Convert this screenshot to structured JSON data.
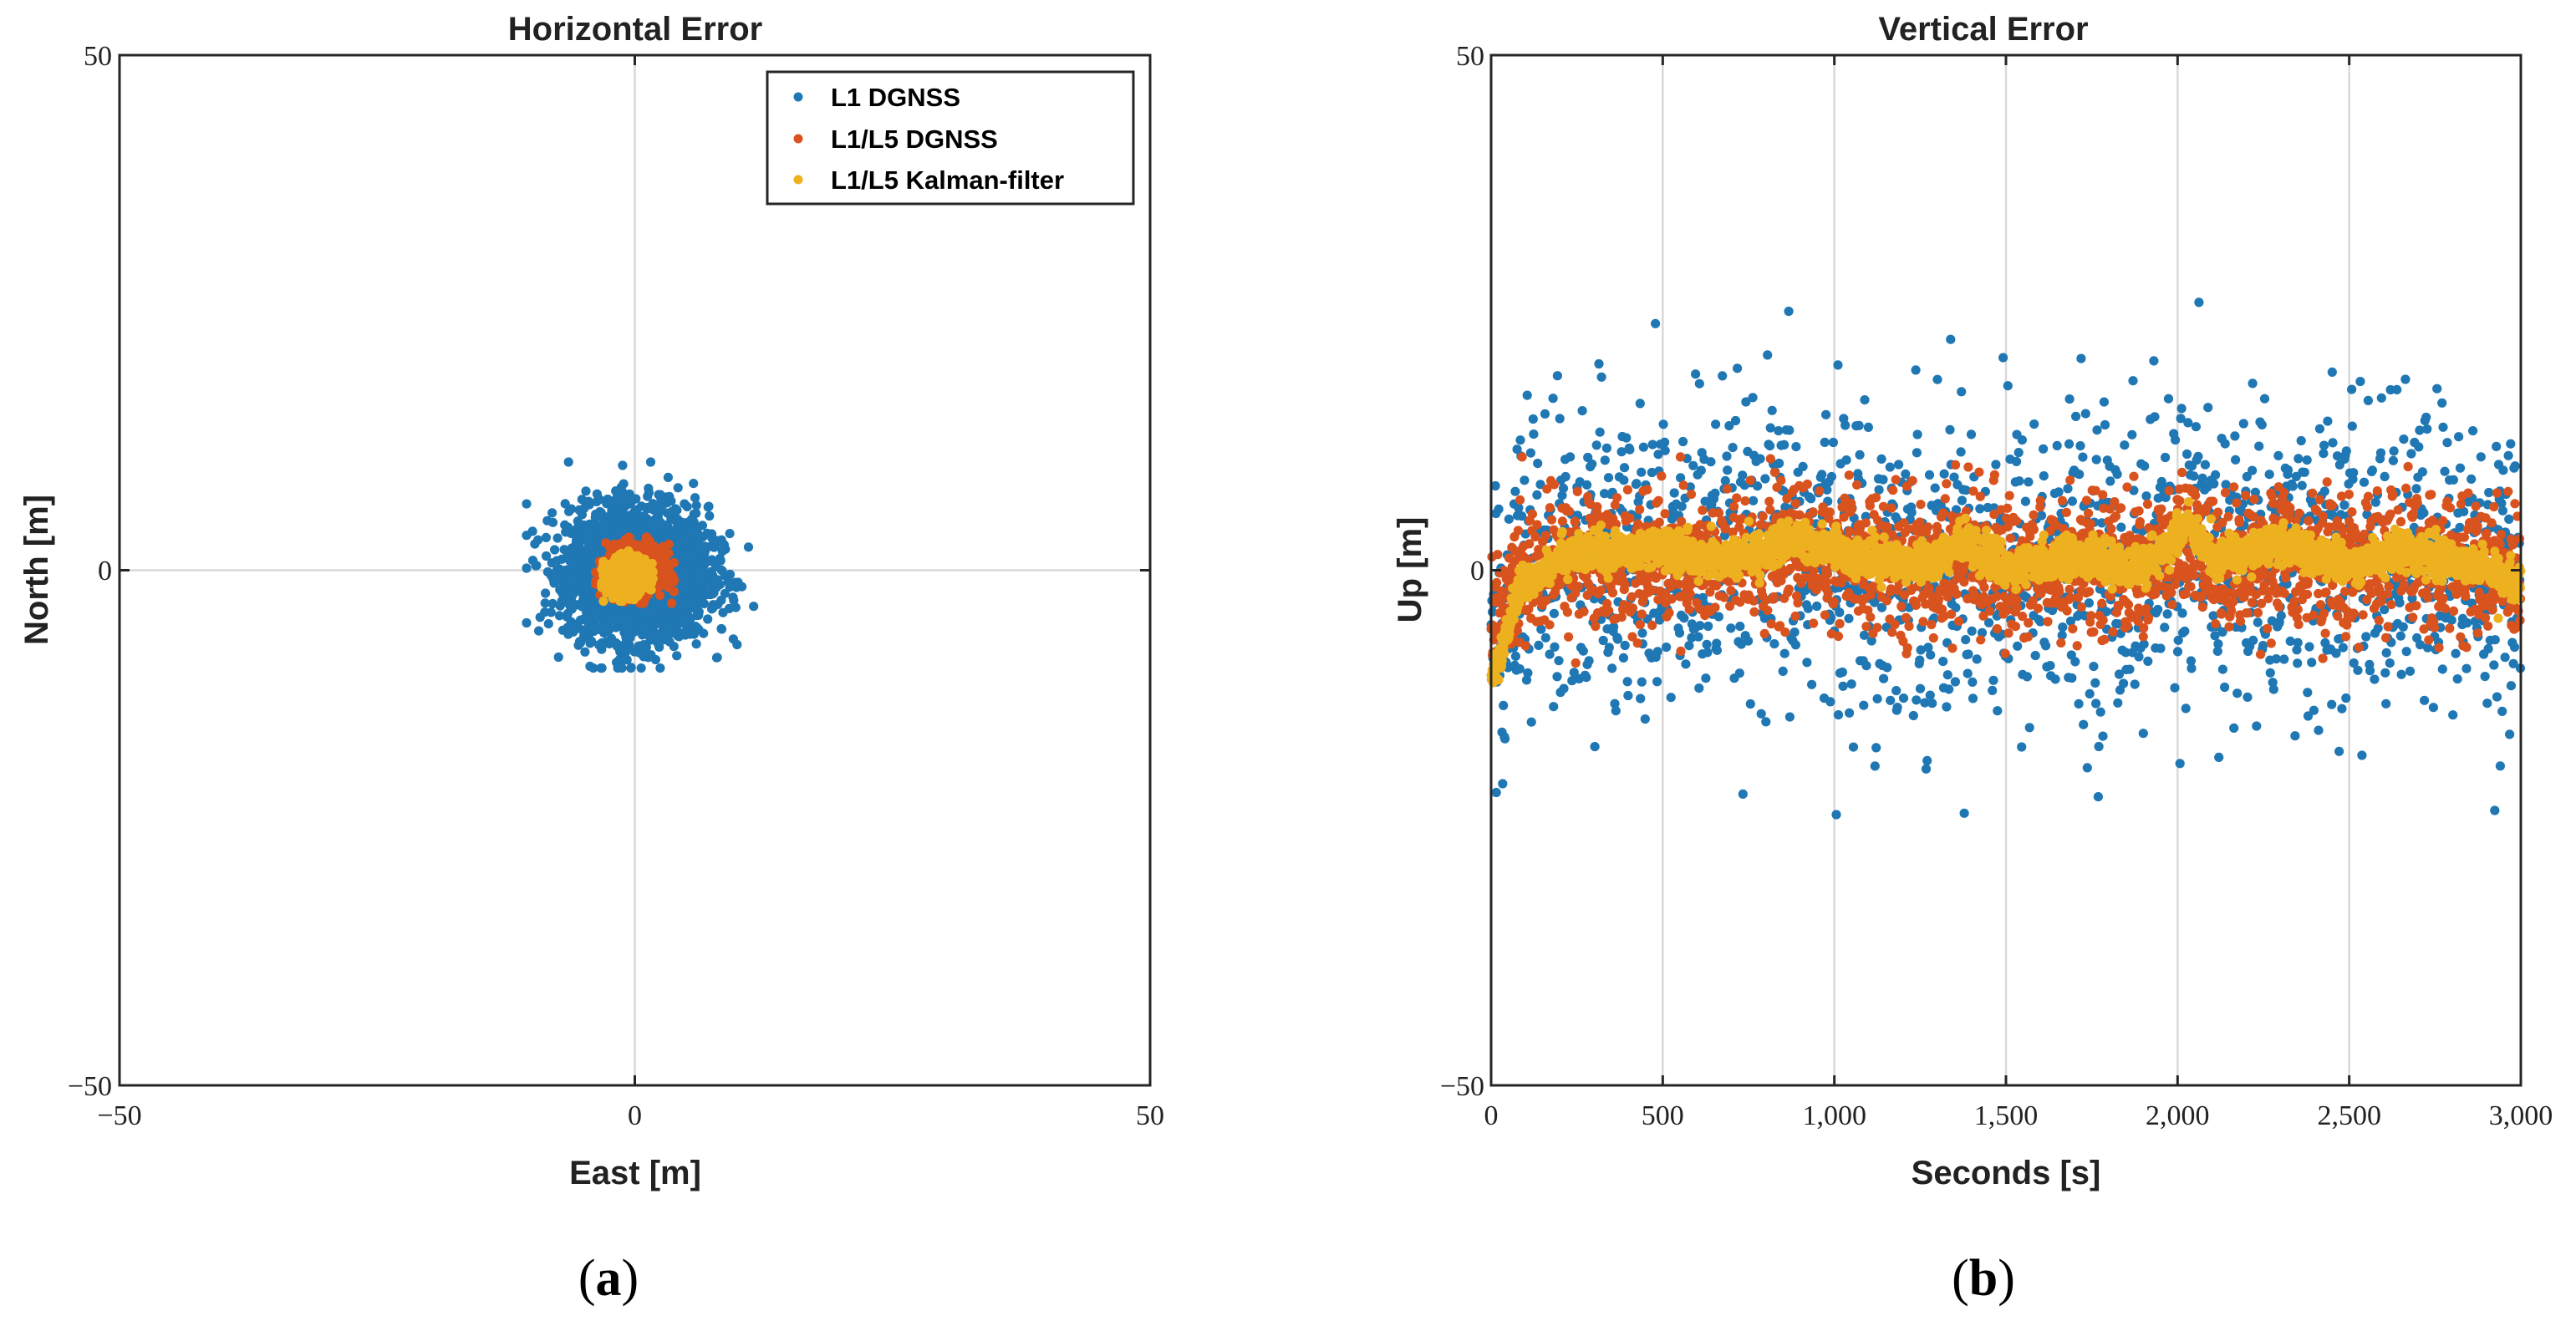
{
  "chart_data": [
    {
      "type": "scatter",
      "title": "Horizontal Error",
      "xlabel": "East [m]",
      "ylabel": "North [m]",
      "xlim": [
        -50,
        50
      ],
      "ylim": [
        -50,
        50
      ],
      "xticks": [
        -50,
        0,
        50
      ],
      "yticks": [
        -50,
        0,
        50
      ],
      "xtick_labels": [
        "−50",
        "0",
        "50"
      ],
      "ytick_labels": [
        "−50",
        "0",
        "50"
      ],
      "grid": true,
      "legend": {
        "position": "top-right",
        "entries": [
          "L1 DGNSS",
          "L1/L5 DGNSS",
          "L1/L5 Kalman-filter"
        ]
      },
      "series": [
        {
          "name": "L1 DGNSS",
          "color": "#1f77b4",
          "center": [
            0.3,
            -0.3
          ],
          "spread_std": [
            3.4,
            3.2
          ],
          "x_range": [
            -10.5,
            13.5
          ],
          "y_range": [
            -9.5,
            10.5
          ],
          "n_points": 2600
        },
        {
          "name": "L1/L5 DGNSS",
          "color": "#d9531e",
          "center": [
            0,
            0
          ],
          "spread_std": [
            1.4,
            1.2
          ],
          "x_range": [
            -3.8,
            3.8
          ],
          "y_range": [
            -3.2,
            3.2
          ],
          "n_points": 700
        },
        {
          "name": "L1/L5 Kalman-filter",
          "color": "#edb120",
          "center": [
            -0.8,
            -0.6
          ],
          "spread_std": [
            1.0,
            0.9
          ],
          "x_range": [
            -3.2,
            2.8
          ],
          "y_range": [
            -3.0,
            2.4
          ],
          "n_points": 500
        }
      ],
      "panel_label": "a"
    },
    {
      "type": "scatter",
      "title": "Vertical Error",
      "xlabel": "Seconds [s]",
      "ylabel": "Up [m]",
      "xlim": [
        0,
        3000
      ],
      "ylim": [
        -50,
        50
      ],
      "xticks": [
        0,
        500,
        1000,
        1500,
        2000,
        2500,
        3000
      ],
      "xtick_labels": [
        "0",
        "500",
        "1,000",
        "1,500",
        "2,000",
        "2,500",
        "3,000"
      ],
      "yticks": [
        -50,
        0,
        50
      ],
      "ytick_labels": [
        "−50",
        "0",
        "50"
      ],
      "grid": true,
      "series": [
        {
          "name": "L1 DGNSS",
          "color": "#1f77b4",
          "y_std": 7.5,
          "y_range": [
            -25.5,
            26
          ],
          "n_points": 1800
        },
        {
          "name": "L1/L5 DGNSS",
          "color": "#d9531e",
          "y_std": 3.2,
          "y_range": [
            -9,
            11
          ],
          "n_points": 2400
        },
        {
          "name": "L1/L5 Kalman-filter",
          "color": "#edb120",
          "trend": [
            [
              0,
              -10
            ],
            [
              30,
              -8
            ],
            [
              80,
              -2
            ],
            [
              200,
              1.5
            ],
            [
              500,
              2
            ],
            [
              700,
              1
            ],
            [
              900,
              3
            ],
            [
              1100,
              1
            ],
            [
              1300,
              1
            ],
            [
              1380,
              3
            ],
            [
              1500,
              0
            ],
            [
              1700,
              1.5
            ],
            [
              1900,
              0
            ],
            [
              2030,
              4.5
            ],
            [
              2100,
              1
            ],
            [
              2300,
              2.5
            ],
            [
              2500,
              0.5
            ],
            [
              2650,
              2
            ],
            [
              2800,
              1
            ],
            [
              3000,
              -1
            ]
          ],
          "n_points": 3000
        }
      ],
      "panel_label": "b"
    }
  ]
}
